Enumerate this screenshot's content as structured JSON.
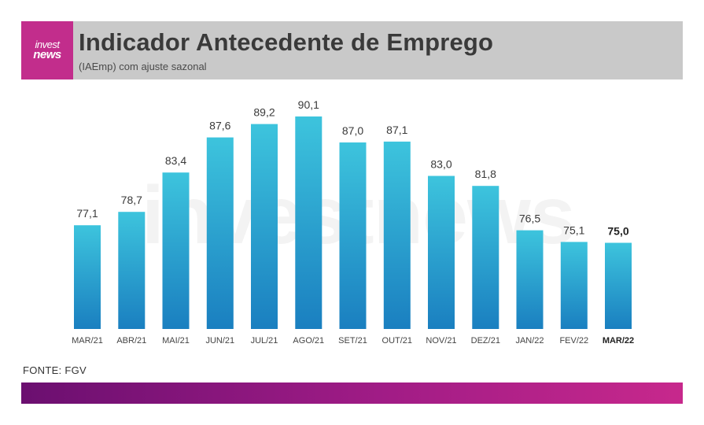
{
  "header": {
    "logo_line1": "invest",
    "logo_line2": "news",
    "title": "Indicador Antecedente de Emprego",
    "subtitle": "(IAEmp) com ajuste sazonal"
  },
  "watermark": "investnews",
  "source": "FONTE: FGV",
  "colors": {
    "bar_top": "#3dc4dd",
    "bar_bottom": "#1a7fc0",
    "brand_magenta": "#c22d8c",
    "header_bg": "#c9c9c9"
  },
  "chart_data": {
    "type": "bar",
    "title": "Indicador Antecedente de Emprego",
    "subtitle": "(IAEmp) com ajuste sazonal",
    "categories": [
      "MAR/21",
      "ABR/21",
      "MAI/21",
      "JUN/21",
      "JUL/21",
      "AGO/21",
      "SET/21",
      "OUT/21",
      "NOV/21",
      "DEZ/21",
      "JAN/22",
      "FEV/22",
      "MAR/22"
    ],
    "values": [
      77.1,
      78.7,
      83.4,
      87.6,
      89.2,
      90.1,
      87.0,
      87.1,
      83.0,
      81.8,
      76.5,
      75.1,
      75.0
    ],
    "labels": [
      "77,1",
      "78,7",
      "83,4",
      "87,6",
      "89,2",
      "90,1",
      "87,0",
      "87,1",
      "83,0",
      "81,8",
      "76,5",
      "75,1",
      "75,0"
    ],
    "highlight_index": 12,
    "ylim": [
      64.7,
      90.1
    ],
    "grid": false,
    "xlabel": "",
    "ylabel": ""
  }
}
